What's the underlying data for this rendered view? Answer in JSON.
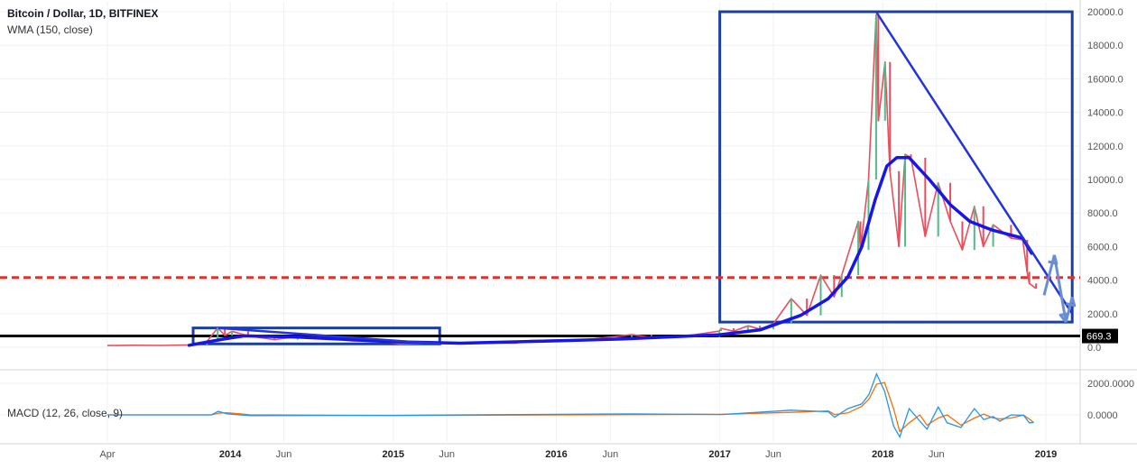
{
  "legend": {
    "title": "Bitcoin / Dollar, 1D, BITFINEX",
    "indicator": "WMA (150, close)",
    "macd": "MACD (12, 26, close, 9)"
  },
  "price_label": "669.3",
  "colors": {
    "up": "#53b987",
    "down": "#eb4d5c",
    "wma": "#1616e8",
    "box": "#1c3fa4",
    "trend": "#2233dd",
    "arrow": "#6a8ed6",
    "support": "#000000",
    "resistance": "#e0322b",
    "macd_line": "#2196f3",
    "signal_line": "#ff6d00",
    "grid": "#eef1f6",
    "axis_text": "#555555"
  },
  "chart_data": {
    "type": "line",
    "title": "Bitcoin / Dollar, 1D, BITFINEX",
    "x_ticks": [
      {
        "date": "2013-04-01",
        "label": "Apr",
        "bold": false
      },
      {
        "date": "2014-01-01",
        "label": "2014",
        "bold": true
      },
      {
        "date": "2014-05-01",
        "label": "Jun",
        "bold": false
      },
      {
        "date": "2015-01-01",
        "label": "2015",
        "bold": true
      },
      {
        "date": "2015-05-01",
        "label": "Jun",
        "bold": false
      },
      {
        "date": "2016-01-01",
        "label": "2016",
        "bold": true
      },
      {
        "date": "2016-05-01",
        "label": "Jun",
        "bold": false
      },
      {
        "date": "2017-01-01",
        "label": "2017",
        "bold": true
      },
      {
        "date": "2017-05-01",
        "label": "Jun",
        "bold": false
      },
      {
        "date": "2018-01-01",
        "label": "2018",
        "bold": true
      },
      {
        "date": "2018-05-01",
        "label": "Jun",
        "bold": false
      },
      {
        "date": "2019-01-01",
        "label": "2019",
        "bold": true
      }
    ],
    "x_range": [
      "2013-04-01",
      "2019-03-01"
    ],
    "y_range": [
      -1500,
      21000
    ],
    "y_ticks": [
      {
        "value": 0,
        "label": "0.0"
      },
      {
        "value": 2000,
        "label": "2000.0"
      },
      {
        "value": 4000,
        "label": "4000.0"
      },
      {
        "value": 6000,
        "label": "6000.0"
      },
      {
        "value": 8000,
        "label": "8000.0"
      },
      {
        "value": 10000,
        "label": "10000.0"
      },
      {
        "value": 12000,
        "label": "12000.0"
      },
      {
        "value": 14000,
        "label": "14000.0"
      },
      {
        "value": 16000,
        "label": "16000.0"
      },
      {
        "value": 18000,
        "label": "18000.0"
      },
      {
        "value": 20000,
        "label": "20000.0"
      }
    ],
    "grid": true,
    "series": [
      {
        "name": "Bitcoin / Dollar, 1D, BITFINEX",
        "kind": "price",
        "points": [
          [
            "2013-04-01",
            100
          ],
          [
            "2013-06-01",
            120
          ],
          [
            "2013-08-01",
            110
          ],
          [
            "2013-10-01",
            140
          ],
          [
            "2013-11-10",
            350
          ],
          [
            "2013-12-04",
            1150
          ],
          [
            "2013-12-20",
            700
          ],
          [
            "2014-01-05",
            950
          ],
          [
            "2014-02-10",
            680
          ],
          [
            "2014-04-10",
            450
          ],
          [
            "2014-06-01",
            640
          ],
          [
            "2014-08-01",
            580
          ],
          [
            "2014-10-01",
            380
          ],
          [
            "2014-12-01",
            370
          ],
          [
            "2015-01-15",
            200
          ],
          [
            "2015-04-01",
            250
          ],
          [
            "2015-07-01",
            280
          ],
          [
            "2015-10-01",
            250
          ],
          [
            "2015-11-05",
            400
          ],
          [
            "2016-01-01",
            430
          ],
          [
            "2016-03-01",
            420
          ],
          [
            "2016-06-18",
            760
          ],
          [
            "2016-08-01",
            580
          ],
          [
            "2016-10-01",
            610
          ],
          [
            "2016-12-31",
            960
          ],
          [
            "2017-01-04",
            1130
          ],
          [
            "2017-02-01",
            950
          ],
          [
            "2017-03-05",
            1280
          ],
          [
            "2017-04-01",
            1080
          ],
          [
            "2017-05-01",
            1400
          ],
          [
            "2017-06-10",
            2900
          ],
          [
            "2017-07-15",
            1900
          ],
          [
            "2017-08-15",
            4300
          ],
          [
            "2017-09-14",
            3000
          ],
          [
            "2017-10-01",
            4300
          ],
          [
            "2017-11-07",
            7500
          ],
          [
            "2017-11-12",
            5800
          ],
          [
            "2017-11-30",
            10000
          ],
          [
            "2017-12-17",
            19800
          ],
          [
            "2017-12-22",
            13500
          ],
          [
            "2018-01-06",
            17000
          ],
          [
            "2018-01-17",
            10500
          ],
          [
            "2018-02-06",
            6000
          ],
          [
            "2018-02-20",
            11500
          ],
          [
            "2018-03-05",
            11300
          ],
          [
            "2018-04-06",
            6600
          ],
          [
            "2018-05-05",
            9800
          ],
          [
            "2018-06-01",
            7500
          ],
          [
            "2018-06-28",
            5800
          ],
          [
            "2018-07-25",
            8400
          ],
          [
            "2018-08-14",
            6000
          ],
          [
            "2018-09-05",
            7300
          ],
          [
            "2018-10-15",
            6500
          ],
          [
            "2018-11-10",
            6400
          ],
          [
            "2018-11-20",
            4500
          ],
          [
            "2018-11-25",
            3800
          ],
          [
            "2018-12-10",
            3500
          ]
        ]
      },
      {
        "name": "WMA (150, close)",
        "kind": "wma",
        "points": [
          [
            "2013-10-01",
            120
          ],
          [
            "2013-12-15",
            480
          ],
          [
            "2014-02-01",
            680
          ],
          [
            "2014-06-01",
            600
          ],
          [
            "2015-01-01",
            330
          ],
          [
            "2015-06-01",
            240
          ],
          [
            "2016-01-01",
            380
          ],
          [
            "2016-06-01",
            500
          ],
          [
            "2017-01-01",
            750
          ],
          [
            "2017-04-01",
            1030
          ],
          [
            "2017-07-01",
            1900
          ],
          [
            "2017-09-01",
            2900
          ],
          [
            "2017-10-15",
            4200
          ],
          [
            "2017-11-15",
            6000
          ],
          [
            "2017-12-15",
            8800
          ],
          [
            "2018-01-10",
            10800
          ],
          [
            "2018-02-01",
            11300
          ],
          [
            "2018-03-01",
            11300
          ],
          [
            "2018-04-15",
            10000
          ],
          [
            "2018-06-01",
            8500
          ],
          [
            "2018-07-15",
            7500
          ],
          [
            "2018-09-01",
            7000
          ],
          [
            "2018-11-10",
            6500
          ],
          [
            "2018-11-30",
            5600
          ]
        ]
      },
      {
        "name": "MACD",
        "kind": "macd",
        "y_range": [
          -1400,
          3200
        ],
        "y_ticks": [
          {
            "value": 0,
            "label": "0.0000"
          },
          {
            "value": 2000,
            "label": "2000.0000"
          }
        ],
        "points": [
          [
            "2013-04-01",
            0
          ],
          [
            "2013-11-20",
            0
          ],
          [
            "2013-12-05",
            220
          ],
          [
            "2013-12-25",
            60
          ],
          [
            "2014-02-15",
            -50
          ],
          [
            "2015-01-01",
            -30
          ],
          [
            "2016-06-18",
            60
          ],
          [
            "2017-01-05",
            20
          ],
          [
            "2017-06-10",
            300
          ],
          [
            "2017-09-01",
            200
          ],
          [
            "2017-09-15",
            -150
          ],
          [
            "2017-10-15",
            400
          ],
          [
            "2017-11-15",
            700
          ],
          [
            "2017-12-01",
            1300
          ],
          [
            "2017-12-18",
            2600
          ],
          [
            "2018-01-05",
            1500
          ],
          [
            "2018-01-25",
            -700
          ],
          [
            "2018-02-08",
            -1400
          ],
          [
            "2018-03-01",
            400
          ],
          [
            "2018-03-25",
            -400
          ],
          [
            "2018-04-10",
            -900
          ],
          [
            "2018-05-05",
            500
          ],
          [
            "2018-05-25",
            -500
          ],
          [
            "2018-06-25",
            -800
          ],
          [
            "2018-07-25",
            400
          ],
          [
            "2018-08-15",
            -300
          ],
          [
            "2018-09-05",
            -100
          ],
          [
            "2018-09-20",
            -400
          ],
          [
            "2018-10-15",
            0
          ],
          [
            "2018-11-12",
            -20
          ],
          [
            "2018-11-25",
            -500
          ],
          [
            "2018-12-05",
            -480
          ]
        ]
      }
    ],
    "annotations": {
      "horizontal_lines": [
        {
          "value": 669.3,
          "style": "solid",
          "color": "#000000"
        },
        {
          "value": 4150,
          "style": "dashed",
          "color": "#e0322b"
        }
      ],
      "boxes": [
        {
          "x0": "2013-10-10",
          "x1": "2015-04-15",
          "y0": 200,
          "y1": 1150
        },
        {
          "x0": "2017-01-01",
          "x1": "2019-03-01",
          "y0": 1500,
          "y1": 20000
        }
      ],
      "trend_lines": [
        {
          "x0": "2013-12-05",
          "y0": 1150,
          "x1": "2015-04-15",
          "y1": 200
        },
        {
          "x0": "2017-12-17",
          "y0": 20000,
          "x1": "2019-03-01",
          "y1": 2000
        }
      ],
      "arrows": [
        {
          "x0": "2018-12-28",
          "y0": 3100,
          "x1": "2019-01-20",
          "y1": 5500
        },
        {
          "x0": "2019-01-20",
          "y0": 5500,
          "x1": "2019-02-15",
          "y1": 1500
        },
        {
          "x0": "2019-02-15",
          "y0": 1500,
          "x1": "2019-03-01",
          "y1": 3000
        }
      ]
    }
  }
}
